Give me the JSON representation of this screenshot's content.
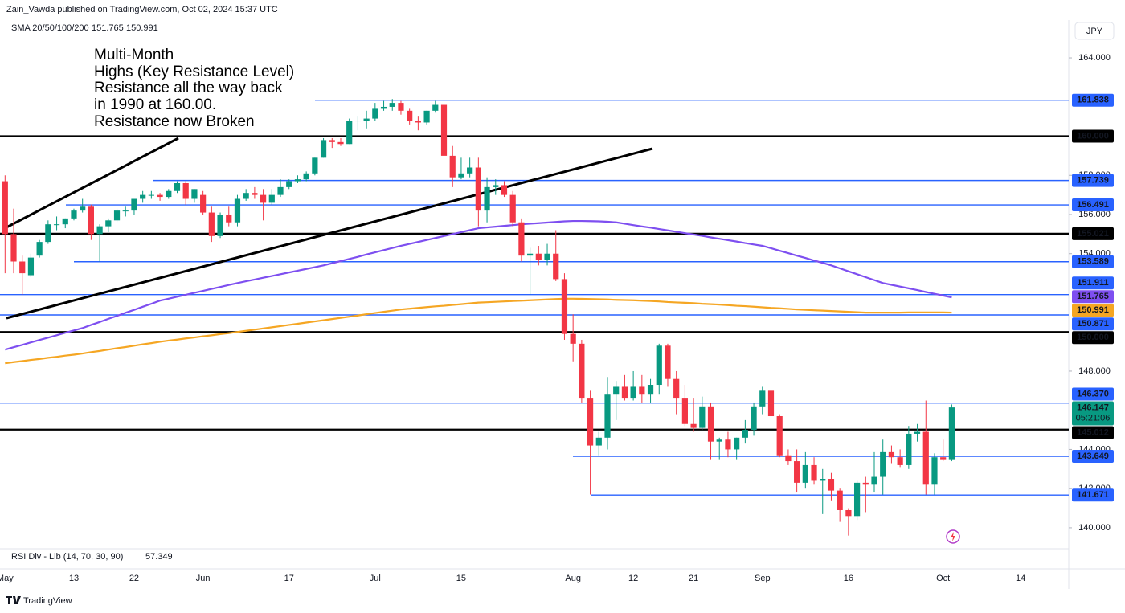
{
  "header": {
    "publisher": "Zain_Vawda published on TradingView.com, Oct 02, 2024 15:37 UTC"
  },
  "footer": {
    "brand": "TradingView"
  },
  "chart_data": {
    "type": "candlestick",
    "currency": "JPY",
    "indicator_label": "SMA 20/50/100/200",
    "rsi": {
      "label": "RSI Div - Lib (14, 70, 30, 90)",
      "value": 57.349
    },
    "annotation": [
      "Multi-Month",
      "Highs (Key Resistance Level)",
      "Resistance all the way back",
      "in 1990 at 160.00.",
      "Resistance now Broken"
    ],
    "countdown": "05:21:06",
    "up_color": "#089981",
    "down_color": "#f23645",
    "ylim": [
      138.93,
      165.93
    ],
    "yticks": [
      {
        "value": 140,
        "label": "140.000"
      },
      {
        "value": 142,
        "label": "142.000"
      },
      {
        "value": 144,
        "label": "144.000"
      },
      {
        "value": 148,
        "label": "148.000"
      },
      {
        "value": 154,
        "label": "154.000"
      },
      {
        "value": 156,
        "label": "156.000"
      },
      {
        "value": 158,
        "label": "158.000"
      },
      {
        "value": 164,
        "label": "164.000"
      }
    ],
    "grid": false,
    "categories": [
      "May",
      null,
      null,
      null,
      null,
      null,
      null,
      null,
      "13",
      null,
      null,
      null,
      null,
      null,
      null,
      "22",
      null,
      null,
      null,
      null,
      null,
      null,
      null,
      "Jun",
      null,
      null,
      null,
      null,
      null,
      null,
      null,
      null,
      null,
      "17",
      null,
      null,
      null,
      null,
      null,
      null,
      null,
      null,
      null,
      "Jul",
      null,
      null,
      null,
      null,
      null,
      null,
      null,
      null,
      null,
      "15",
      null,
      null,
      null,
      null,
      null,
      null,
      null,
      null,
      null,
      null,
      null,
      null,
      "Aug",
      null,
      null,
      null,
      null,
      null,
      null,
      "12",
      null,
      null,
      null,
      null,
      null,
      null,
      "21",
      null,
      null,
      null,
      null,
      null,
      null,
      null,
      "Sep",
      null,
      null,
      null,
      null,
      null,
      null,
      null,
      null,
      null,
      "16",
      null,
      null,
      null,
      null,
      null,
      null,
      null,
      null,
      null,
      null,
      "Oct",
      null,
      null,
      null,
      null,
      null,
      null,
      null,
      null,
      "14"
    ],
    "open": [
      157.7,
      155.0,
      153.6,
      152.9,
      153.9,
      154.6,
      155.5,
      155.5,
      155.8,
      156.2,
      156.4,
      155.0,
      155.4,
      155.7,
      156.2,
      156.2,
      156.8,
      157.0,
      157.0,
      156.9,
      157.2,
      157.6,
      156.8,
      157.0,
      156.1,
      154.9,
      156.0,
      155.6,
      156.8,
      157.1,
      157.0,
      156.6,
      157.0,
      157.4,
      157.7,
      157.8,
      158.1,
      158.9,
      159.8,
      159.7,
      159.6,
      160.8,
      160.8,
      160.9,
      161.4,
      161.5,
      161.7,
      161.3,
      160.8,
      160.7,
      161.3,
      161.6,
      159.0,
      157.9,
      158.1,
      158.4,
      156.2,
      157.4,
      157.5,
      157.0,
      155.6,
      153.9,
      154.0,
      153.7,
      154.0,
      152.7,
      149.9,
      149.4,
      146.6,
      144.2,
      144.6,
      146.8,
      147.2,
      146.6,
      147.2,
      146.8,
      147.3,
      149.3,
      147.6,
      146.6,
      145.3,
      145.1,
      146.2,
      144.4,
      144.5,
      144.0,
      144.6,
      145.0,
      146.2,
      147.0,
      145.7,
      143.7,
      143.4,
      142.3,
      143.2,
      142.4,
      142.5,
      141.9,
      140.9,
      140.6,
      142.3,
      142.2,
      142.6,
      143.9,
      143.6,
      143.2,
      144.8,
      144.9,
      142.2,
      143.6,
      143.5,
      null,
      null,
      null,
      null,
      null,
      null,
      null,
      null
    ],
    "high": [
      158.0,
      156.3,
      153.9,
      154.0,
      154.7,
      155.7,
      155.9,
      155.8,
      156.3,
      156.8,
      156.5,
      155.5,
      155.8,
      156.3,
      156.4,
      156.8,
      157.2,
      157.2,
      157.1,
      157.3,
      157.7,
      157.7,
      157.3,
      157.2,
      156.4,
      156.1,
      156.4,
      157.0,
      157.3,
      157.4,
      157.3,
      157.3,
      157.8,
      157.8,
      158.0,
      158.2,
      158.9,
      159.9,
      159.9,
      159.9,
      160.9,
      161.0,
      161.3,
      161.7,
      161.8,
      161.9,
      161.8,
      161.4,
      161.0,
      161.3,
      161.8,
      161.8,
      159.5,
      158.9,
      158.9,
      158.9,
      157.9,
      157.8,
      157.7,
      157.2,
      155.8,
      154.3,
      154.4,
      154.5,
      155.2,
      153.0,
      150.9,
      149.6,
      147.0,
      144.9,
      147.7,
      147.5,
      147.8,
      148.0,
      147.8,
      147.6,
      149.4,
      149.4,
      148.0,
      147.3,
      146.6,
      146.7,
      146.4,
      144.6,
      144.9,
      144.6,
      145.5,
      146.4,
      147.2,
      147.2,
      145.8,
      144.0,
      144.0,
      143.9,
      143.6,
      143.0,
      142.8,
      142.0,
      141.0,
      142.4,
      142.6,
      143.9,
      144.5,
      144.2,
      144.0,
      145.2,
      145.3,
      146.5,
      143.8,
      144.5,
      146.3,
      null,
      null,
      null,
      null,
      null,
      null,
      null,
      null
    ],
    "low": [
      153.0,
      153.0,
      151.9,
      152.8,
      153.8,
      154.5,
      155.2,
      155.3,
      155.7,
      156.1,
      154.7,
      153.6,
      155.1,
      155.6,
      155.9,
      156.0,
      156.6,
      156.8,
      156.7,
      156.8,
      157.1,
      156.5,
      156.6,
      156.0,
      154.6,
      154.8,
      155.4,
      155.4,
      156.7,
      156.8,
      155.7,
      156.5,
      156.9,
      157.3,
      157.6,
      157.7,
      158.0,
      158.9,
      159.4,
      159.5,
      159.6,
      160.3,
      160.4,
      160.8,
      161.3,
      161.3,
      161.1,
      160.6,
      160.3,
      160.6,
      161.2,
      157.4,
      157.4,
      157.8,
      157.9,
      155.4,
      155.6,
      157.0,
      156.9,
      155.4,
      153.6,
      151.9,
      153.4,
      153.4,
      152.6,
      149.6,
      148.5,
      146.4,
      141.7,
      143.7,
      144.0,
      145.5,
      146.5,
      146.5,
      146.4,
      146.4,
      146.8,
      147.2,
      145.8,
      145.2,
      144.9,
      145.0,
      143.5,
      143.5,
      143.6,
      143.5,
      144.3,
      144.7,
      145.8,
      145.6,
      143.6,
      143.2,
      141.8,
      142.0,
      142.2,
      140.7,
      141.4,
      140.3,
      139.6,
      140.4,
      140.8,
      141.8,
      141.7,
      143.3,
      143.1,
      143.0,
      144.4,
      141.7,
      141.7,
      143.4,
      143.4,
      null,
      null,
      null,
      null,
      null,
      null,
      null,
      null
    ],
    "close": [
      155.0,
      153.6,
      153.0,
      153.8,
      154.6,
      155.5,
      155.5,
      155.8,
      156.2,
      156.4,
      155.0,
      155.4,
      155.7,
      156.2,
      156.2,
      156.8,
      157.0,
      157.0,
      156.9,
      157.2,
      157.6,
      156.8,
      157.3,
      156.1,
      154.9,
      156.0,
      155.6,
      156.8,
      157.1,
      157.0,
      156.6,
      157.0,
      157.4,
      157.7,
      157.8,
      158.1,
      158.9,
      159.8,
      159.7,
      159.6,
      160.8,
      160.8,
      160.9,
      161.4,
      161.5,
      161.7,
      161.3,
      160.8,
      160.7,
      161.3,
      161.6,
      159.0,
      157.9,
      158.1,
      158.4,
      156.2,
      157.4,
      157.5,
      157.0,
      155.6,
      153.9,
      154.0,
      153.7,
      154.0,
      152.7,
      149.9,
      149.4,
      146.6,
      144.2,
      144.6,
      146.8,
      147.2,
      146.6,
      147.2,
      146.8,
      147.3,
      149.3,
      147.6,
      146.6,
      145.3,
      145.1,
      146.2,
      144.4,
      144.5,
      144.0,
      144.6,
      145.0,
      146.2,
      147.0,
      145.7,
      143.7,
      143.4,
      142.3,
      143.2,
      142.4,
      142.5,
      141.9,
      140.9,
      140.6,
      142.3,
      142.2,
      142.6,
      143.9,
      143.6,
      143.2,
      144.8,
      144.9,
      142.2,
      143.6,
      143.5,
      146.147,
      null,
      null,
      null,
      null,
      null,
      null,
      null,
      null
    ],
    "series": [
      {
        "color": "#7e4ff0",
        "values": [
          149.1,
          149.22,
          149.34,
          149.47,
          149.59,
          149.71,
          149.83,
          149.96,
          150.08,
          150.2,
          150.36,
          150.51,
          150.67,
          150.82,
          150.98,
          151.13,
          151.29,
          151.44,
          151.6,
          151.7,
          151.8,
          151.9,
          152.0,
          152.1,
          152.2,
          152.3,
          152.4,
          152.5,
          152.59,
          152.68,
          152.77,
          152.86,
          152.95,
          153.04,
          153.13,
          153.22,
          153.31,
          153.4,
          153.51,
          153.62,
          153.73,
          153.84,
          153.96,
          154.07,
          154.18,
          154.29,
          154.4,
          154.5,
          154.6,
          154.7,
          154.8,
          154.9,
          155.0,
          155.1,
          155.2,
          155.3,
          155.34,
          155.38,
          155.42,
          155.46,
          155.5,
          155.53,
          155.56,
          155.59,
          155.62,
          155.65,
          155.67,
          155.67,
          155.66,
          155.65,
          155.63,
          155.6,
          155.53,
          155.46,
          155.39,
          155.33,
          155.26,
          155.19,
          155.12,
          155.05,
          154.98,
          154.91,
          154.83,
          154.76,
          154.69,
          154.62,
          154.54,
          154.47,
          154.4,
          154.28,
          154.15,
          154.03,
          153.9,
          153.78,
          153.65,
          153.53,
          153.4,
          153.25,
          153.1,
          152.95,
          152.8,
          152.65,
          152.5,
          152.41,
          152.32,
          152.23,
          152.14,
          152.04,
          151.95,
          151.86,
          151.765,
          null,
          null,
          null,
          null,
          null,
          null,
          null,
          null
        ]
      },
      {
        "color": "#f5a623",
        "values": [
          148.4,
          148.46,
          148.51,
          148.57,
          148.62,
          148.68,
          148.73,
          148.79,
          148.84,
          148.9,
          148.97,
          149.03,
          149.1,
          149.17,
          149.23,
          149.3,
          149.37,
          149.43,
          149.5,
          149.56,
          149.61,
          149.67,
          149.72,
          149.78,
          149.83,
          149.89,
          149.94,
          150.0,
          150.06,
          150.12,
          150.18,
          150.24,
          150.3,
          150.36,
          150.42,
          150.48,
          150.54,
          150.6,
          150.66,
          150.72,
          150.78,
          150.84,
          150.91,
          150.97,
          151.03,
          151.09,
          151.15,
          151.19,
          151.23,
          151.27,
          151.31,
          151.34,
          151.38,
          151.42,
          151.46,
          151.5,
          151.52,
          151.54,
          151.56,
          151.58,
          151.6,
          151.62,
          151.64,
          151.66,
          151.68,
          151.7,
          151.7,
          151.69,
          151.68,
          151.67,
          151.66,
          151.64,
          151.63,
          151.62,
          151.6,
          151.58,
          151.56,
          151.53,
          151.51,
          151.49,
          151.47,
          151.44,
          151.42,
          151.4,
          151.37,
          151.34,
          151.32,
          151.29,
          151.26,
          151.23,
          151.21,
          151.18,
          151.15,
          151.13,
          151.11,
          151.09,
          151.07,
          151.05,
          151.03,
          151.01,
          150.99,
          150.99,
          150.99,
          150.99,
          150.99,
          151.0,
          151.0,
          151.0,
          151.0,
          151.0,
          150.991,
          null,
          null,
          null,
          null,
          null,
          null,
          null,
          null
        ]
      }
    ],
    "levels": [
      {
        "value": 161.838,
        "color": "#2962ff"
      },
      {
        "value": 160,
        "label": "160.000",
        "color": "#000000"
      },
      {
        "value": 157.739,
        "color": "#2962ff"
      },
      {
        "value": 156.491,
        "color": "#2962ff"
      },
      {
        "value": 155.021,
        "color": "#000000"
      },
      {
        "value": 153.589,
        "color": "#2962ff"
      },
      {
        "value": 151.911,
        "color": "#2962ff"
      },
      {
        "value": 150.871,
        "color": "#2962ff"
      },
      {
        "value": 150,
        "label": "150.000",
        "color": "#000000"
      },
      {
        "value": 146.37,
        "label": "146.370",
        "color": "#2962ff"
      },
      {
        "value": 145.012,
        "color": "#000000"
      },
      {
        "value": 143.649,
        "color": "#2962ff"
      },
      {
        "value": 141.671,
        "color": "#2962ff"
      }
    ]
  }
}
